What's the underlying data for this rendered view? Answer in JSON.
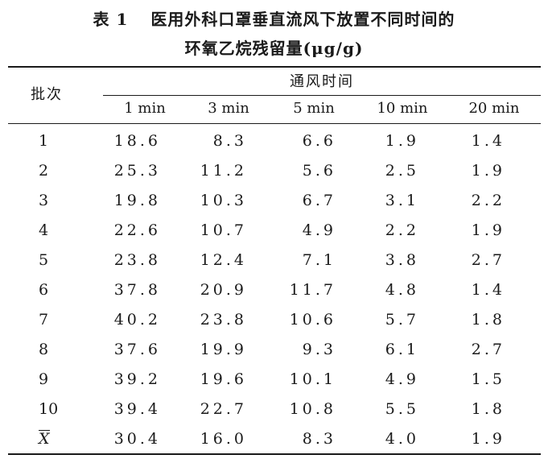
{
  "caption": {
    "table_num": "表 1",
    "line1": "医用外科口罩垂直流风下放置不同时间的",
    "line2": "环氧乙烷残留量(μg/g)"
  },
  "header": {
    "batch": "批次",
    "group": "通风时间",
    "columns": [
      "1 min",
      "3 min",
      "5 min",
      "10 min",
      "20 min"
    ]
  },
  "rows": [
    {
      "batch": "1",
      "values": [
        "18.6",
        "8.3",
        "6.6",
        "1.9",
        "1.4"
      ]
    },
    {
      "batch": "2",
      "values": [
        "25.3",
        "11.2",
        "5.6",
        "2.5",
        "1.9"
      ]
    },
    {
      "batch": "3",
      "values": [
        "19.8",
        "10.3",
        "6.7",
        "3.1",
        "2.2"
      ]
    },
    {
      "batch": "4",
      "values": [
        "22.6",
        "10.7",
        "4.9",
        "2.2",
        "1.9"
      ]
    },
    {
      "batch": "5",
      "values": [
        "23.8",
        "12.4",
        "7.1",
        "3.8",
        "2.7"
      ]
    },
    {
      "batch": "6",
      "values": [
        "37.8",
        "20.9",
        "11.7",
        "4.8",
        "1.4"
      ]
    },
    {
      "batch": "7",
      "values": [
        "40.2",
        "23.8",
        "10.6",
        "5.7",
        "1.8"
      ]
    },
    {
      "batch": "8",
      "values": [
        "37.6",
        "19.9",
        "9.3",
        "6.1",
        "2.7"
      ]
    },
    {
      "batch": "9",
      "values": [
        "39.2",
        "19.6",
        "10.1",
        "4.9",
        "1.5"
      ]
    },
    {
      "batch": "10",
      "values": [
        "39.4",
        "22.7",
        "10.8",
        "5.5",
        "1.8"
      ]
    },
    {
      "batch": "X",
      "values": [
        "30.4",
        "16.0",
        "8.3",
        "4.0",
        "1.9"
      ]
    }
  ]
}
